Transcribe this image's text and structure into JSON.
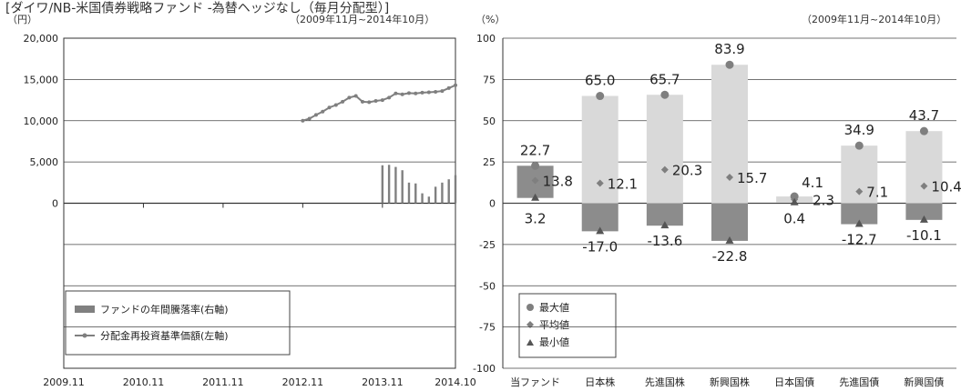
{
  "header": {
    "title": "[ダイワ/NB-米国債券戦略ファンド -為替ヘッジなし（毎月分配型）]"
  },
  "chart_data": [
    {
      "type": "line",
      "period_note": "（2009年11月~2014年10月）",
      "y_unit": "（円）",
      "right_unit": "",
      "ylim": [
        -20000,
        20000
      ],
      "yticks": [
        "20,000",
        "15,000",
        "10,000",
        "5,000",
        "0"
      ],
      "xticks": [
        "2009.11",
        "2010.11",
        "2011.11",
        "2012.11",
        "2013.11",
        "2014.10"
      ],
      "grid": true,
      "legend_position": "bottom-left",
      "series": [
        {
          "name": "分配金再投資基準価額(左軸)",
          "color": "#7f7f7f",
          "x": [
            36,
            37,
            38,
            39,
            40,
            41,
            42,
            43,
            44,
            45,
            46,
            47,
            48,
            49,
            50,
            51,
            52,
            53,
            54,
            55,
            56,
            57,
            58,
            59
          ],
          "values": [
            10000,
            10250,
            10700,
            11100,
            11600,
            11900,
            12300,
            12800,
            13000,
            12300,
            12250,
            12400,
            12500,
            12800,
            13300,
            13200,
            13350,
            13300,
            13400,
            13450,
            13500,
            13600,
            13950,
            14300
          ]
        },
        {
          "name": "ファンドの年間騰落率(右軸)",
          "type": "bar",
          "color": "#808080",
          "x": [
            48,
            49,
            50,
            51,
            52,
            53,
            54,
            55,
            56,
            57,
            58,
            59
          ],
          "values": [
            4600,
            4650,
            4400,
            4000,
            2500,
            2400,
            1200,
            800,
            2000,
            2500,
            2900,
            3400
          ]
        }
      ]
    },
    {
      "type": "bar",
      "period_note": "（2009年11月~2014年10月）",
      "y_unit": "（%）",
      "ylim": [
        -100,
        100
      ],
      "yticks": [
        "100",
        "75",
        "50",
        "25",
        "0",
        "-25",
        "-50",
        "-75",
        "-100"
      ],
      "categories": [
        "当ファンド",
        "日本株",
        "先進国株",
        "新興国株",
        "日本国債",
        "先進国債",
        "新興国債"
      ],
      "max": [
        22.7,
        65.0,
        65.7,
        83.9,
        4.1,
        34.9,
        43.7
      ],
      "avg": [
        13.8,
        12.1,
        20.3,
        15.7,
        2.3,
        7.1,
        10.4
      ],
      "min": [
        3.2,
        -17.0,
        -13.6,
        -22.8,
        0.4,
        -12.7,
        -10.1
      ],
      "max_labels": [
        "22.7",
        "65.0",
        "65.7",
        "83.9",
        "4.1",
        "34.9",
        "43.7"
      ],
      "avg_labels": [
        "13.8",
        "12.1",
        "20.3",
        "15.7",
        "2.3",
        "7.1",
        "10.4"
      ],
      "min_labels": [
        "3.2",
        "-17.0",
        "-13.6",
        "-22.8",
        "0.4",
        "-12.7",
        "-10.1"
      ],
      "grid": true,
      "legend_position": "bottom-left",
      "legend": [
        "最大値",
        "平均値",
        "最小値"
      ],
      "colors": {
        "range_pos": "#d9d9d9",
        "range_neg": "#8c8c8c",
        "fund": "#8c8c8c",
        "marker": "#7f7f7f"
      }
    }
  ]
}
